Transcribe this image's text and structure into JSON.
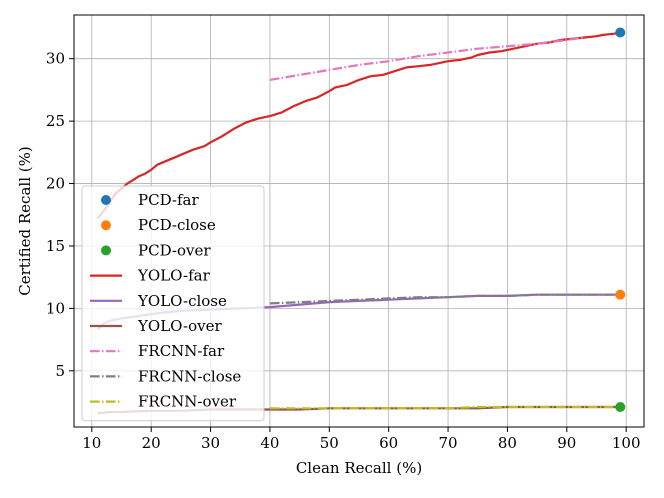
{
  "chart_data": {
    "type": "line",
    "title": "",
    "xlabel": "Clean Recall (%)",
    "ylabel": "Certified Recall (%)",
    "xlim": [
      7,
      103
    ],
    "ylim": [
      0.5,
      33.5
    ],
    "xticks": [
      10,
      20,
      30,
      40,
      50,
      60,
      70,
      80,
      90,
      100
    ],
    "yticks": [
      5,
      10,
      15,
      20,
      25,
      30
    ],
    "grid": true,
    "legend_position": "lower-left",
    "points": [
      {
        "name": "PCD-far",
        "x": 99,
        "y": 32.1,
        "color": "#1f77b4"
      },
      {
        "name": "PCD-close",
        "x": 99,
        "y": 11.1,
        "color": "#ff7f0e"
      },
      {
        "name": "PCD-over",
        "x": 99,
        "y": 2.1,
        "color": "#2ca02c"
      }
    ],
    "series": [
      {
        "name": "YOLO-far",
        "color": "#d62728",
        "style": "solid",
        "x": [
          11,
          12,
          13,
          14,
          15,
          16,
          17,
          18,
          19,
          20,
          21,
          23,
          25,
          27,
          29,
          30,
          32,
          34,
          36,
          38,
          40,
          42,
          44,
          46,
          48,
          50,
          51,
          53,
          55,
          57,
          59,
          61,
          63,
          65,
          67,
          69,
          70,
          72,
          74,
          75,
          77,
          79,
          81,
          83,
          85,
          87,
          89,
          91,
          93,
          95,
          96,
          98,
          99
        ],
        "y": [
          17.2,
          17.8,
          18.5,
          19.2,
          19.6,
          20.0,
          20.3,
          20.6,
          20.8,
          21.1,
          21.5,
          21.9,
          22.3,
          22.7,
          23.0,
          23.3,
          23.8,
          24.4,
          24.9,
          25.2,
          25.4,
          25.7,
          26.2,
          26.6,
          26.9,
          27.4,
          27.7,
          27.9,
          28.3,
          28.6,
          28.7,
          29.0,
          29.3,
          29.4,
          29.5,
          29.7,
          29.8,
          29.9,
          30.1,
          30.3,
          30.5,
          30.6,
          30.8,
          31.0,
          31.2,
          31.3,
          31.5,
          31.6,
          31.7,
          31.8,
          31.9,
          32.0,
          32.1
        ]
      },
      {
        "name": "YOLO-close",
        "color": "#9467bd",
        "style": "solid",
        "x": [
          11,
          12,
          13,
          15,
          18,
          21,
          25,
          30,
          35,
          40,
          45,
          50,
          55,
          60,
          65,
          70,
          75,
          80,
          85,
          90,
          95,
          99
        ],
        "y": [
          8.3,
          8.8,
          9.0,
          9.2,
          9.4,
          9.6,
          9.8,
          9.9,
          10.0,
          10.1,
          10.3,
          10.5,
          10.6,
          10.7,
          10.8,
          10.9,
          11.0,
          11.0,
          11.1,
          11.1,
          11.1,
          11.1
        ]
      },
      {
        "name": "YOLO-over",
        "color": "#8c564b",
        "style": "solid",
        "x": [
          11,
          13,
          15,
          20,
          25,
          30,
          35,
          40,
          45,
          50,
          55,
          60,
          65,
          70,
          75,
          80,
          85,
          90,
          95,
          99
        ],
        "y": [
          1.6,
          1.7,
          1.7,
          1.8,
          1.8,
          1.9,
          1.9,
          1.9,
          1.9,
          2.0,
          2.0,
          2.0,
          2.0,
          2.0,
          2.0,
          2.1,
          2.1,
          2.1,
          2.1,
          2.1
        ]
      },
      {
        "name": "FRCNN-far",
        "color": "#e377c2",
        "style": "dashdot",
        "x": [
          40,
          45,
          50,
          55,
          60,
          65,
          70,
          75,
          80,
          85,
          90,
          93
        ],
        "y": [
          28.3,
          28.7,
          29.1,
          29.5,
          29.8,
          30.2,
          30.5,
          30.8,
          31.0,
          31.2,
          31.5,
          31.7
        ]
      },
      {
        "name": "FRCNN-close",
        "color": "#7f7f7f",
        "style": "dashdot",
        "x": [
          40,
          45,
          50,
          55,
          60,
          65,
          70,
          75,
          80,
          85,
          90,
          95,
          99
        ],
        "y": [
          10.4,
          10.5,
          10.6,
          10.7,
          10.8,
          10.9,
          10.9,
          11.0,
          11.0,
          11.1,
          11.1,
          11.1,
          11.1
        ]
      },
      {
        "name": "FRCNN-over",
        "color": "#bcbd22",
        "style": "dashdot",
        "x": [
          40,
          45,
          50,
          55,
          60,
          65,
          70,
          75,
          80,
          85,
          90,
          95,
          99
        ],
        "y": [
          2.0,
          2.0,
          2.0,
          2.0,
          2.0,
          2.0,
          2.0,
          2.1,
          2.1,
          2.1,
          2.1,
          2.1,
          2.1
        ]
      }
    ],
    "legend": [
      {
        "label": "PCD-far",
        "kind": "marker",
        "color": "#1f77b4"
      },
      {
        "label": "PCD-close",
        "kind": "marker",
        "color": "#ff7f0e"
      },
      {
        "label": "PCD-over",
        "kind": "marker",
        "color": "#2ca02c"
      },
      {
        "label": "YOLO-far",
        "kind": "solid",
        "color": "#d62728"
      },
      {
        "label": "YOLO-close",
        "kind": "solid",
        "color": "#9467bd"
      },
      {
        "label": "YOLO-over",
        "kind": "solid",
        "color": "#8c564b"
      },
      {
        "label": "FRCNN-far",
        "kind": "dashdot",
        "color": "#e377c2"
      },
      {
        "label": "FRCNN-close",
        "kind": "dashdot",
        "color": "#7f7f7f"
      },
      {
        "label": "FRCNN-over",
        "kind": "dashdot",
        "color": "#bcbd22"
      }
    ]
  }
}
